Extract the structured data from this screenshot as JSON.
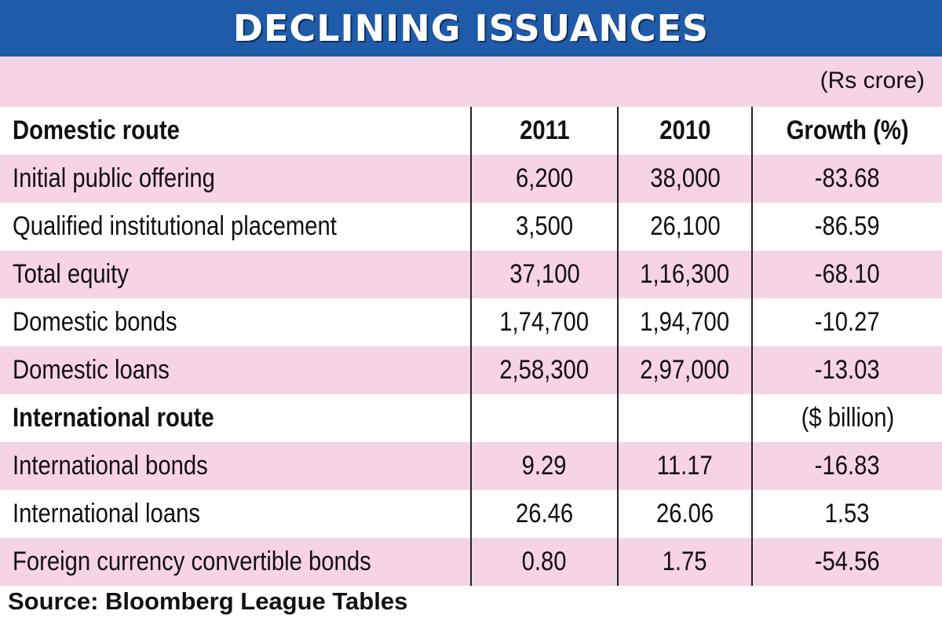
{
  "title": "DECLINING ISSUANCES",
  "unit_note": "(Rs crore)",
  "source": "Source: Bloomberg League Tables",
  "chart_data": {
    "type": "table",
    "title": "DECLINING ISSUANCES",
    "columns": [
      "Domestic route",
      "2011",
      "2010",
      "Growth (%)"
    ],
    "rows": [
      {
        "label": "Initial public offering",
        "v2011": "6,200",
        "v2010": "38,000",
        "growth": "-83.68",
        "section": false
      },
      {
        "label": "Qualified institutional placement",
        "v2011": "3,500",
        "v2010": "26,100",
        "growth": "-86.59",
        "section": false
      },
      {
        "label": "Total equity",
        "v2011": "37,100",
        "v2010": "1,16,300",
        "growth": "-68.10",
        "section": false
      },
      {
        "label": "Domestic bonds",
        "v2011": "1,74,700",
        "v2010": "1,94,700",
        "growth": "-10.27",
        "section": false
      },
      {
        "label": "Domestic loans",
        "v2011": "2,58,300",
        "v2010": "2,97,000",
        "growth": "-13.03",
        "section": false
      },
      {
        "label": "International route",
        "v2011": "",
        "v2010": "",
        "growth": "($ billion)",
        "section": true
      },
      {
        "label": "International bonds",
        "v2011": "9.29",
        "v2010": "11.17",
        "growth": "-16.83",
        "section": false
      },
      {
        "label": "International loans",
        "v2011": "26.46",
        "v2010": "26.06",
        "growth": "1.53",
        "section": false
      },
      {
        "label": "Foreign currency convertible bonds",
        "v2011": "0.80",
        "v2010": "1.75",
        "growth": "-54.56",
        "section": false
      }
    ]
  },
  "colors": {
    "title_bg": "#1f5ba8",
    "title_text": "#ffffff",
    "stripe": "#f7d3e6",
    "divider": "#222222"
  }
}
